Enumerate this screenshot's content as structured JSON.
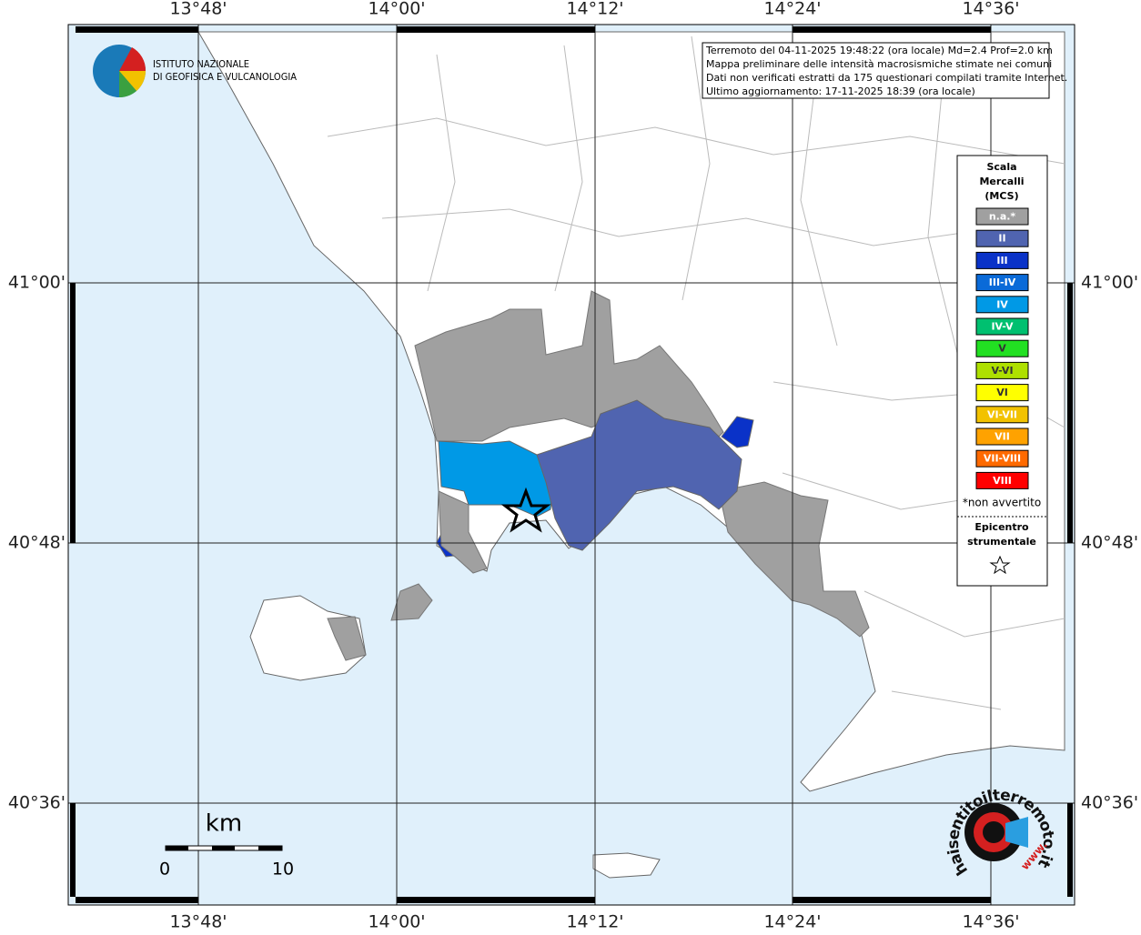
{
  "header": {
    "institute": [
      "ISTITUTO NAZIONALE",
      "DI GEOFISICA E VULCANOLOGIA"
    ]
  },
  "info": [
    "Terremoto del 04-11-2025 19:48:22 (ora locale) Md=2.4 Prof=2.0 km",
    "Mappa preliminare delle intensità macrosismiche stimate nei comuni",
    "Dati non verificati estratti da 175 questionari compilati tramite Internet.",
    "Ultimo aggiornamento: 17-11-2025 18:39 (ora locale)"
  ],
  "map": {
    "lon_labels": [
      "13°48'",
      "14°00'",
      "14°12'",
      "14°24'",
      "14°36'"
    ],
    "lat_labels": [
      "41°00'",
      "40°48'",
      "40°36'"
    ]
  },
  "legend": {
    "title": [
      "Scala",
      "Mercalli",
      "(MCS)"
    ],
    "items": [
      {
        "label": "n.a.*",
        "color": "#a0a0a0"
      },
      {
        "label": "II",
        "color": "#5064b0"
      },
      {
        "label": "III",
        "color": "#0a32c8"
      },
      {
        "label": "III-IV",
        "color": "#0a6ad8"
      },
      {
        "label": "IV",
        "color": "#0099e6"
      },
      {
        "label": "IV-V",
        "color": "#00c070"
      },
      {
        "label": "V",
        "color": "#22e022"
      },
      {
        "label": "V-VI",
        "color": "#aee000"
      },
      {
        "label": "VI",
        "color": "#ffff00"
      },
      {
        "label": "VI-VII",
        "color": "#f2c200"
      },
      {
        "label": "VII",
        "color": "#ffa200"
      },
      {
        "label": "VII-VIII",
        "color": "#ff6a00"
      },
      {
        "label": "VIII",
        "color": "#ff0000"
      }
    ],
    "note": "*non avvertito",
    "epicenter": [
      "Epicentro",
      "strumentale"
    ]
  },
  "scale_bar": {
    "unit": "km",
    "ticks": [
      0,
      10
    ]
  },
  "logo": {
    "site": "haisentitoilterremoto.it",
    "prefix": "www."
  }
}
